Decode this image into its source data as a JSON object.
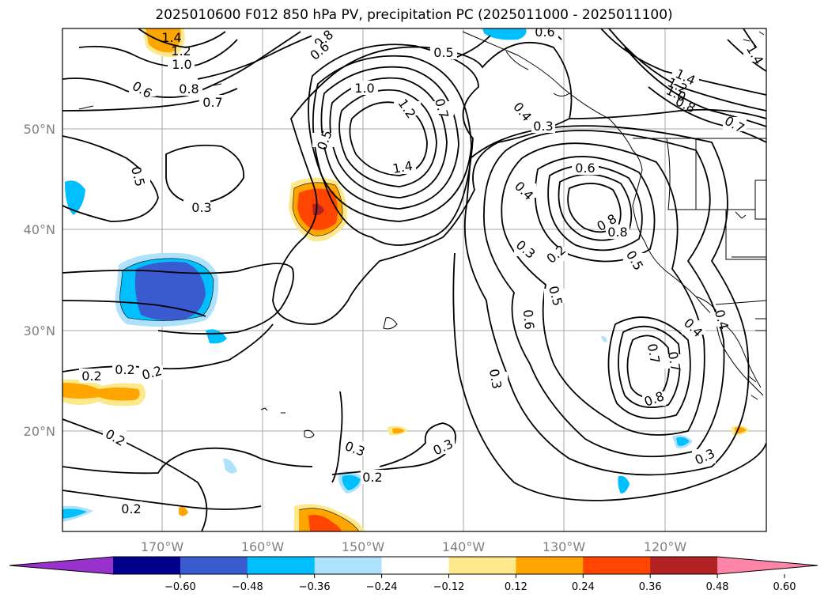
{
  "title": "2025010600 F012 850 hPa PV, precipitation PC (2025011000 - 2025011100)",
  "map": {
    "lat_labels": [
      "50°N",
      "40°N",
      "30°N",
      "20°N"
    ],
    "lon_labels": [
      "170°W",
      "160°W",
      "150°W",
      "140°W",
      "130°W",
      "120°W"
    ]
  },
  "colorbar": {
    "ticks": [
      "−0.60",
      "−0.48",
      "−0.36",
      "−0.24",
      "−0.12",
      "0.12",
      "0.24",
      "0.36",
      "0.48",
      "0.60"
    ],
    "colors": [
      "#9932cc",
      "#00008b",
      "#3a5bd0",
      "#00bfff",
      "#aee2fa",
      "#ffffff",
      "#fde98b",
      "#ffa500",
      "#ff4500",
      "#b22222",
      "#ff85a8"
    ]
  },
  "contour_labels": [
    "1.4",
    "1.2",
    "1.0",
    "0.8",
    "0.6",
    "0.7",
    "0.5",
    "0.6",
    "0.8",
    "0.6",
    "0.5",
    "1.0",
    "1.2",
    "0.7",
    "1.4",
    "0.4",
    "0.3",
    "0.6",
    "1.4",
    "1.2",
    "1.0",
    "0.8",
    "0.7",
    "0.5",
    "0.8",
    "0.4",
    "0.8",
    "0.7",
    "0.3",
    "0.2",
    "0.5",
    "0.5",
    "0.6",
    "0.4",
    "0.4",
    "0.7",
    "0.8",
    "0.3",
    "0.3",
    "0.3",
    "0.3",
    "0.2",
    "0.2",
    "0.2",
    "0.2",
    "0.2",
    "0.2",
    "0.3",
    "1.4"
  ]
}
